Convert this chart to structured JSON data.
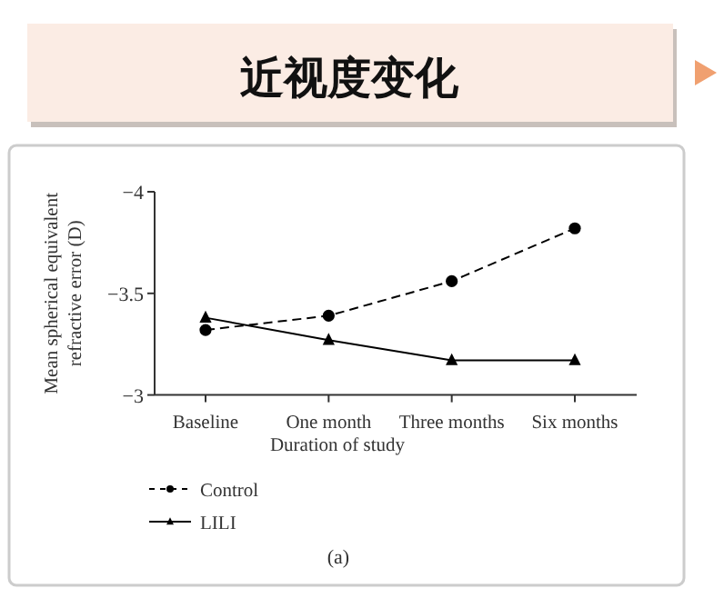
{
  "chart_data": {
    "type": "line",
    "title": "近视度变化",
    "xlabel": "Duration of study",
    "ylabel": "Mean spherical equivalent refractive error (D)",
    "categories": [
      "Baseline",
      "One month",
      "Three months",
      "Six months"
    ],
    "series": [
      {
        "name": "Control",
        "color": "#000000",
        "marker": "circle",
        "line_style": "dashed",
        "values": [
          -3.32,
          -3.39,
          -3.56,
          -3.82
        ]
      },
      {
        "name": "LILI",
        "color": "#000000",
        "marker": "triangle",
        "line_style": "solid",
        "values": [
          -3.38,
          -3.27,
          -3.17,
          -3.17
        ]
      }
    ],
    "ylim": [
      -3,
      -4
    ],
    "yticks": [
      -3,
      -3.5,
      -4
    ],
    "grid": false,
    "legend": "bottom",
    "annotations": [
      "(a)"
    ]
  }
}
